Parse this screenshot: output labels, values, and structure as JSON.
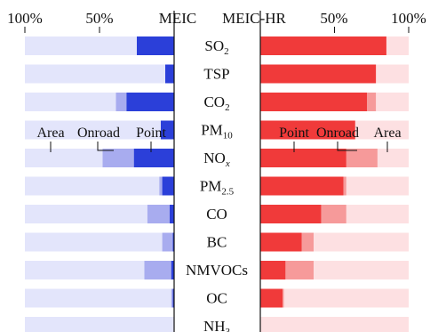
{
  "chart_data": {
    "type": "bar",
    "subtype": "mirrored-stacked-horizontal",
    "stack_order": [
      "Point",
      "Onroad",
      "Area"
    ],
    "panels": [
      {
        "id": "meic",
        "header": "MEIC",
        "tick_labels": [
          "100%",
          "50%"
        ],
        "direction": "leftward",
        "colors": {
          "Point": "#2b3fd9",
          "Onroad": "#a8acef",
          "Area": "#e3e5fb"
        },
        "legend": [
          "Area",
          "Onroad",
          "Point"
        ]
      },
      {
        "id": "meic_hr",
        "header": "MEIC-HR",
        "tick_labels": [
          "50%",
          "100%"
        ],
        "direction": "rightward",
        "colors": {
          "Point": "#f03a3a",
          "Onroad": "#f69a9a",
          "Area": "#fde0e2"
        },
        "legend": [
          "Point",
          "Onroad",
          "Area"
        ]
      }
    ],
    "categories": [
      {
        "base": "SO",
        "sub": "2"
      },
      {
        "base": "TSP",
        "sub": ""
      },
      {
        "base": "CO",
        "sub": "2"
      },
      {
        "base": "PM",
        "sub": "10"
      },
      {
        "base": "NO",
        "sub": "x",
        "sub_italic": true
      },
      {
        "base": "PM",
        "sub": "2.5"
      },
      {
        "base": "CO",
        "sub": ""
      },
      {
        "base": "BC",
        "sub": ""
      },
      {
        "base": "NMVOCs",
        "sub": ""
      },
      {
        "base": "OC",
        "sub": ""
      },
      {
        "base": "NH",
        "sub": "3"
      }
    ],
    "series": {
      "meic": {
        "Point": [
          25,
          6,
          32,
          9,
          27,
          8,
          3,
          1,
          2,
          1,
          0
        ],
        "Onroad": [
          0,
          0,
          7,
          0,
          21,
          2,
          15,
          7,
          18,
          1,
          0
        ],
        "Area": [
          75,
          94,
          61,
          91,
          52,
          90,
          82,
          92,
          80,
          98,
          100
        ]
      },
      "meic_hr": {
        "Point": [
          85,
          78,
          72,
          64,
          58,
          56,
          41,
          28,
          17,
          15,
          0
        ],
        "Onroad": [
          0,
          0,
          6,
          0,
          21,
          2,
          17,
          8,
          19,
          1,
          0
        ],
        "Area": [
          15,
          22,
          22,
          36,
          21,
          42,
          42,
          64,
          64,
          84,
          100
        ]
      }
    },
    "xlim": [
      0,
      100
    ],
    "grid": false
  }
}
